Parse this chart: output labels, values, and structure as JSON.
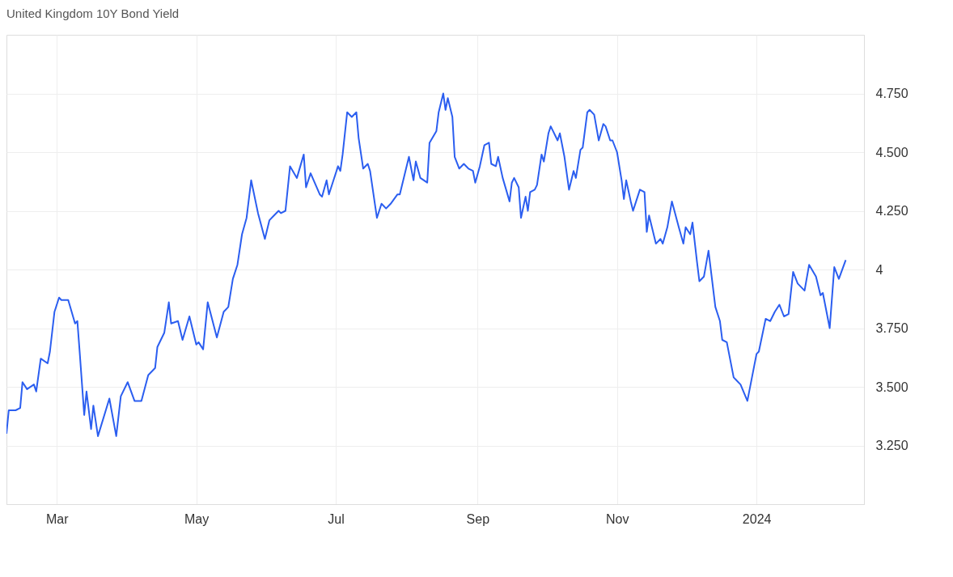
{
  "chart_data": {
    "type": "line",
    "title": "United Kingdom 10Y Bond Yield",
    "color": "#2b5ef0",
    "grid": true,
    "x": [
      "2023-02-07",
      "2023-02-08",
      "2023-02-11",
      "2023-02-13",
      "2023-02-14",
      "2023-02-16",
      "2023-02-19",
      "2023-02-20",
      "2023-02-22",
      "2023-02-25",
      "2023-02-26",
      "2023-02-28",
      "2023-03-02",
      "2023-03-03",
      "2023-03-06",
      "2023-03-09",
      "2023-03-10",
      "2023-03-11",
      "2023-03-13",
      "2023-03-14",
      "2023-03-16",
      "2023-03-17",
      "2023-03-19",
      "2023-03-24",
      "2023-03-27",
      "2023-03-29",
      "2023-04-01",
      "2023-04-04",
      "2023-04-07",
      "2023-04-10",
      "2023-04-13",
      "2023-04-14",
      "2023-04-17",
      "2023-04-19",
      "2023-04-20",
      "2023-04-23",
      "2023-04-25",
      "2023-04-28",
      "2023-05-01",
      "2023-05-02",
      "2023-05-04",
      "2023-05-06",
      "2023-05-10",
      "2023-05-13",
      "2023-05-15",
      "2023-05-17",
      "2023-05-19",
      "2023-05-21",
      "2023-05-23",
      "2023-05-25",
      "2023-05-28",
      "2023-05-31",
      "2023-06-02",
      "2023-06-04",
      "2023-06-06",
      "2023-06-07",
      "2023-06-09",
      "2023-06-11",
      "2023-06-14",
      "2023-06-17",
      "2023-06-18",
      "2023-06-20",
      "2023-06-24",
      "2023-06-25",
      "2023-06-27",
      "2023-06-28",
      "2023-06-30",
      "2023-07-02",
      "2023-07-03",
      "2023-07-04",
      "2023-07-06",
      "2023-07-08",
      "2023-07-10",
      "2023-07-11",
      "2023-07-13",
      "2023-07-15",
      "2023-07-16",
      "2023-07-19",
      "2023-07-21",
      "2023-07-23",
      "2023-07-25",
      "2023-07-28",
      "2023-07-29",
      "2023-07-31",
      "2023-08-02",
      "2023-08-04",
      "2023-08-05",
      "2023-08-07",
      "2023-08-10",
      "2023-08-11",
      "2023-08-14",
      "2023-08-15",
      "2023-08-17",
      "2023-08-18",
      "2023-08-19",
      "2023-08-21",
      "2023-08-22",
      "2023-08-24",
      "2023-08-26",
      "2023-08-28",
      "2023-08-30",
      "2023-08-31",
      "2023-09-02",
      "2023-09-04",
      "2023-09-06",
      "2023-09-07",
      "2023-09-09",
      "2023-09-10",
      "2023-09-12",
      "2023-09-15",
      "2023-09-16",
      "2023-09-17",
      "2023-09-19",
      "2023-09-20",
      "2023-09-22",
      "2023-09-23",
      "2023-09-24",
      "2023-09-26",
      "2023-09-27",
      "2023-09-29",
      "2023-09-30",
      "2023-10-02",
      "2023-10-03",
      "2023-10-04",
      "2023-10-06",
      "2023-10-07",
      "2023-10-09",
      "2023-10-11",
      "2023-10-13",
      "2023-10-14",
      "2023-10-16",
      "2023-10-17",
      "2023-10-19",
      "2023-10-20",
      "2023-10-22",
      "2023-10-24",
      "2023-10-26",
      "2023-10-27",
      "2023-10-29",
      "2023-10-30",
      "2023-11-01",
      "2023-11-03",
      "2023-11-04",
      "2023-11-05",
      "2023-11-07",
      "2023-11-08",
      "2023-11-11",
      "2023-11-13",
      "2023-11-14",
      "2023-11-15",
      "2023-11-18",
      "2023-11-20",
      "2023-11-21",
      "2023-11-23",
      "2023-11-25",
      "2023-11-28",
      "2023-11-30",
      "2023-12-01",
      "2023-12-03",
      "2023-12-04",
      "2023-12-06",
      "2023-12-07",
      "2023-12-09",
      "2023-12-11",
      "2023-12-14",
      "2023-12-16",
      "2023-12-17",
      "2023-12-19",
      "2023-12-22",
      "2023-12-23",
      "2023-12-25",
      "2023-12-28",
      "2023-12-30",
      "2024-01-01",
      "2024-01-02",
      "2024-01-05",
      "2024-01-07",
      "2024-01-09",
      "2024-01-11",
      "2024-01-13",
      "2024-01-15",
      "2024-01-17",
      "2024-01-19",
      "2024-01-22",
      "2024-01-24",
      "2024-01-27",
      "2024-01-29",
      "2024-01-30",
      "2024-02-02",
      "2024-02-04",
      "2024-02-06",
      "2024-02-09"
    ],
    "values": [
      3.3,
      3.4,
      3.4,
      3.41,
      3.52,
      3.49,
      3.51,
      3.48,
      3.62,
      3.6,
      3.65,
      3.82,
      3.88,
      3.87,
      3.87,
      3.77,
      3.78,
      3.65,
      3.38,
      3.48,
      3.32,
      3.42,
      3.29,
      3.45,
      3.29,
      3.46,
      3.52,
      3.44,
      3.44,
      3.55,
      3.58,
      3.67,
      3.73,
      3.86,
      3.77,
      3.78,
      3.7,
      3.8,
      3.68,
      3.69,
      3.66,
      3.86,
      3.71,
      3.82,
      3.84,
      3.96,
      4.02,
      4.15,
      4.22,
      4.38,
      4.24,
      4.13,
      4.21,
      4.23,
      4.25,
      4.24,
      4.25,
      4.44,
      4.39,
      4.49,
      4.35,
      4.41,
      4.32,
      4.31,
      4.38,
      4.32,
      4.38,
      4.44,
      4.42,
      4.49,
      4.67,
      4.65,
      4.67,
      4.56,
      4.43,
      4.45,
      4.42,
      4.22,
      4.28,
      4.26,
      4.28,
      4.32,
      4.32,
      4.4,
      4.48,
      4.38,
      4.46,
      4.39,
      4.37,
      4.54,
      4.59,
      4.67,
      4.75,
      4.68,
      4.73,
      4.65,
      4.48,
      4.43,
      4.45,
      4.43,
      4.42,
      4.37,
      4.44,
      4.53,
      4.54,
      4.45,
      4.44,
      4.48,
      4.39,
      4.29,
      4.37,
      4.39,
      4.35,
      4.22,
      4.31,
      4.25,
      4.33,
      4.34,
      4.36,
      4.49,
      4.46,
      4.58,
      4.61,
      4.59,
      4.55,
      4.58,
      4.48,
      4.34,
      4.42,
      4.39,
      4.51,
      4.52,
      4.67,
      4.68,
      4.66,
      4.55,
      4.62,
      4.61,
      4.55,
      4.55,
      4.5,
      4.38,
      4.3,
      4.38,
      4.29,
      4.25,
      4.34,
      4.33,
      4.16,
      4.23,
      4.11,
      4.13,
      4.11,
      4.18,
      4.29,
      4.18,
      4.11,
      4.18,
      4.15,
      4.2,
      4.03,
      3.95,
      3.97,
      4.08,
      3.84,
      3.78,
      3.7,
      3.69,
      3.54,
      3.53,
      3.51,
      3.44,
      3.54,
      3.64,
      3.65,
      3.79,
      3.78,
      3.82,
      3.85,
      3.8,
      3.81,
      3.99,
      3.94,
      3.91,
      4.02,
      3.97,
      3.89,
      3.9,
      3.75,
      4.01,
      3.96,
      4.04
    ],
    "xlim": [
      "2023-02-07",
      "2024-02-17"
    ],
    "xticks": [
      {
        "value": "2023-03-01",
        "label": "Mar"
      },
      {
        "value": "2023-05-01",
        "label": "May"
      },
      {
        "value": "2023-07-01",
        "label": "Jul"
      },
      {
        "value": "2023-09-01",
        "label": "Sep"
      },
      {
        "value": "2023-11-01",
        "label": "Nov"
      },
      {
        "value": "2024-01-01",
        "label": "2024"
      }
    ],
    "ylim": [
      3.0,
      5.0
    ],
    "yticks": [
      {
        "value": 3.25,
        "label": "3.250"
      },
      {
        "value": 3.5,
        "label": "3.500"
      },
      {
        "value": 3.75,
        "label": "3.750"
      },
      4,
      {
        "value": 4.25,
        "label": "4.250"
      },
      {
        "value": 4.5,
        "label": "4.500"
      },
      {
        "value": 4.75,
        "label": "4.750"
      }
    ]
  }
}
